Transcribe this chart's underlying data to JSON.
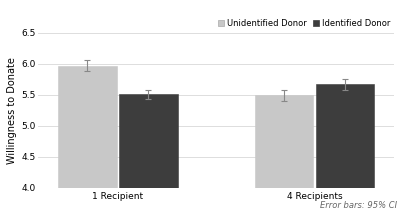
{
  "groups": [
    "1 Recipient",
    "4 Recipients"
  ],
  "bar_labels": [
    "Unidentified Donor",
    "Identified Donor"
  ],
  "values": [
    [
      5.97,
      5.51
    ],
    [
      5.49,
      5.67
    ]
  ],
  "errors": [
    [
      0.09,
      0.07
    ],
    [
      0.09,
      0.09
    ]
  ],
  "bar_colors": [
    "#c8c8c8",
    "#3d3d3d"
  ],
  "bar_edge_colors": [
    "#c8c8c8",
    "#3d3d3d"
  ],
  "ylabel": "Willingness to Donate",
  "ylim": [
    4.0,
    6.5
  ],
  "yticks": [
    4.0,
    4.5,
    5.0,
    5.5,
    6.0,
    6.5
  ],
  "footnote": "Error bars: 95% CI",
  "background_color": "#ffffff",
  "bar_width": 0.22,
  "group_centers": [
    0.38,
    1.12
  ],
  "legend_fontsize": 6.0,
  "axis_fontsize": 7.0,
  "tick_fontsize": 6.5,
  "footnote_fontsize": 6.0
}
